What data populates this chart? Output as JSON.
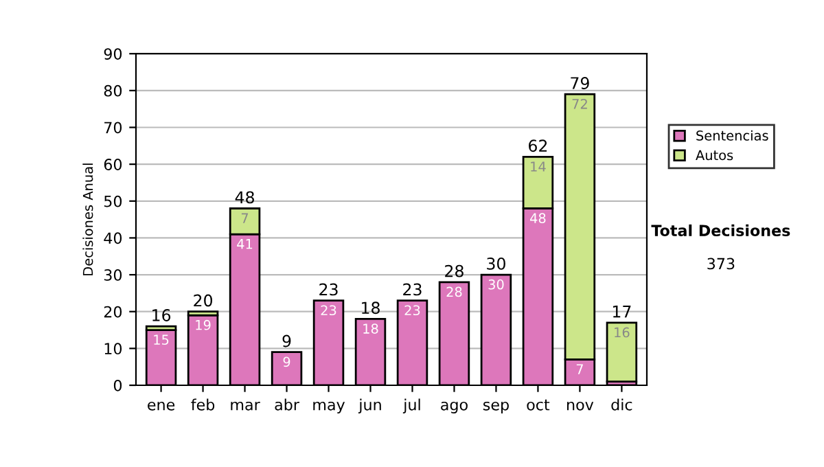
{
  "chart_data": {
    "type": "bar",
    "stacked": true,
    "ylabel": "Decisiones Anual",
    "categories": [
      "ene",
      "feb",
      "mar",
      "abr",
      "may",
      "jun",
      "jul",
      "ago",
      "sep",
      "oct",
      "nov",
      "dic"
    ],
    "series": [
      {
        "name": "Sentencias",
        "color": "#dd77bb",
        "values": [
          15,
          19,
          41,
          9,
          23,
          18,
          23,
          28,
          30,
          48,
          7,
          1
        ],
        "value_labels": [
          "15",
          "19",
          "41",
          "9",
          "23",
          "18",
          "23",
          "28",
          "30",
          "48",
          "7",
          null
        ]
      },
      {
        "name": "Autos",
        "color": "#cce68a",
        "values": [
          1,
          1,
          7,
          null,
          null,
          null,
          null,
          null,
          null,
          14,
          72,
          16
        ],
        "value_labels": [
          null,
          null,
          "7",
          null,
          null,
          null,
          null,
          null,
          null,
          "14",
          "72",
          "16"
        ]
      }
    ],
    "totals": [
      "16",
      "20",
      "48",
      "9",
      "23",
      "18",
      "23",
      "28",
      "30",
      "62",
      "79",
      "17"
    ],
    "ylim": [
      0,
      90
    ],
    "yticks": [
      0,
      10,
      20,
      30,
      40,
      50,
      60,
      70,
      80,
      90
    ],
    "grid": "y",
    "legend": "right",
    "annotations": [
      "Total Decisiones",
      "373"
    ]
  }
}
